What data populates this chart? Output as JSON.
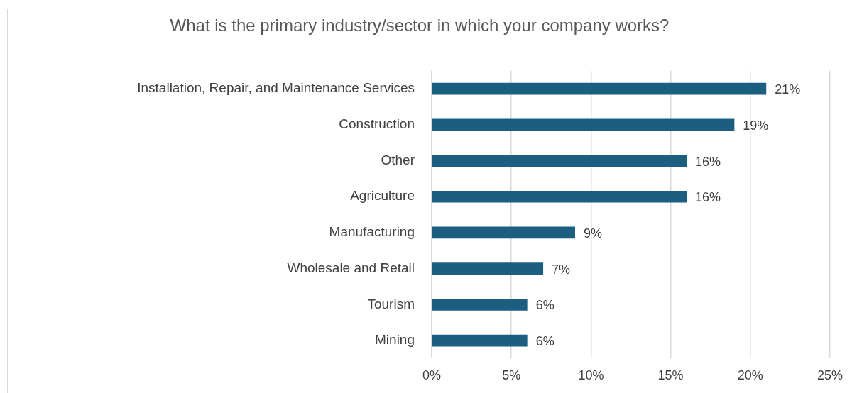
{
  "chart_data": {
    "type": "bar",
    "orientation": "horizontal",
    "title": "What is the primary industry/sector in which your company works?",
    "categories": [
      "Installation, Repair, and Maintenance Services",
      "Construction",
      "Other",
      "Agriculture",
      "Manufacturing",
      "Wholesale and Retail",
      "Tourism",
      "Mining"
    ],
    "values": [
      21,
      19,
      16,
      16,
      9,
      7,
      6,
      6
    ],
    "value_labels": [
      "21%",
      "19%",
      "16%",
      "16%",
      "9%",
      "7%",
      "6%",
      "6%"
    ],
    "color": "#1b5e80",
    "xlim": [
      0,
      25
    ],
    "xticks": [
      {
        "value": 0,
        "label": "0%"
      },
      {
        "value": 5,
        "label": "5%"
      },
      {
        "value": 10,
        "label": "10%"
      },
      {
        "value": 15,
        "label": "15%"
      },
      {
        "value": 20,
        "label": "20%"
      },
      {
        "value": 25,
        "label": "25%"
      }
    ],
    "grid": "x",
    "legend": false
  }
}
